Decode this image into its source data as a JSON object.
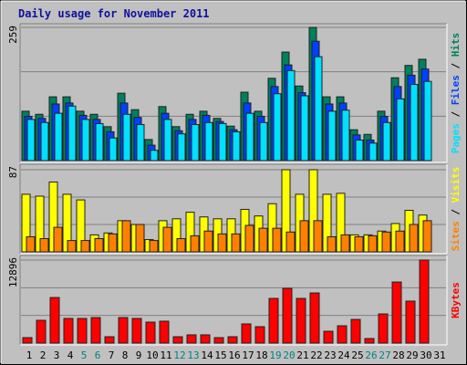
{
  "title": "Daily usage for November 2011",
  "chart_data": [
    {
      "type": "bar",
      "ylim": [
        0,
        259
      ],
      "yticks": [
        259
      ],
      "grid": true,
      "legend_separator": " / ",
      "series": [
        {
          "name": "Hits",
          "color": "#00805c",
          "values": [
            96,
            90,
            124,
            124,
            96,
            90,
            66,
            131,
            99,
            41,
            105,
            66,
            90,
            96,
            82,
            67,
            133,
            96,
            160,
            211,
            145,
            259,
            124,
            124,
            60,
            51,
            96,
            161,
            185,
            197,
            0
          ]
        },
        {
          "name": "Files",
          "color": "#0040ff",
          "values": [
            86,
            82,
            110,
            112,
            88,
            80,
            56,
            112,
            84,
            30,
            92,
            58,
            80,
            88,
            76,
            60,
            112,
            86,
            144,
            186,
            132,
            232,
            110,
            112,
            50,
            40,
            86,
            144,
            166,
            178,
            0
          ]
        },
        {
          "name": "Pages",
          "color": "#00e0ff",
          "values": [
            80,
            74,
            92,
            106,
            80,
            72,
            44,
            90,
            70,
            20,
            80,
            52,
            70,
            74,
            72,
            56,
            92,
            74,
            130,
            175,
            126,
            202,
            96,
            98,
            40,
            34,
            74,
            120,
            148,
            154,
            0
          ]
        }
      ]
    },
    {
      "type": "bar",
      "ylim": [
        0,
        87
      ],
      "yticks": [
        87
      ],
      "grid": true,
      "legend_separator": " / ",
      "series": [
        {
          "name": "Visits",
          "color": "#ffff00",
          "values": [
            61,
            59,
            74,
            61,
            55,
            18,
            20,
            33,
            29,
            13,
            33,
            35,
            42,
            37,
            35,
            35,
            45,
            38,
            51,
            87,
            61,
            87,
            61,
            62,
            18,
            18,
            22,
            30,
            44,
            39,
            0
          ]
        },
        {
          "name": "Sites",
          "color": "#ff8000",
          "values": [
            16,
            14,
            26,
            12,
            12,
            14,
            19,
            33,
            29,
            12,
            26,
            14,
            17,
            22,
            19,
            19,
            28,
            25,
            25,
            21,
            33,
            33,
            16,
            18,
            16,
            17,
            21,
            22,
            29,
            33,
            0
          ]
        }
      ]
    },
    {
      "type": "bar",
      "ylim": [
        0,
        12896
      ],
      "yticks": [
        12896
      ],
      "grid": true,
      "categories": [
        "1",
        "2",
        "3",
        "4",
        "5",
        "6",
        "7",
        "8",
        "9",
        "10",
        "11",
        "12",
        "13",
        "14",
        "15",
        "16",
        "17",
        "18",
        "19",
        "20",
        "21",
        "22",
        "23",
        "24",
        "25",
        "26",
        "27",
        "28",
        "29",
        "30",
        "31"
      ],
      "weekend": [
        false,
        false,
        false,
        false,
        true,
        true,
        false,
        false,
        false,
        false,
        false,
        true,
        true,
        false,
        false,
        false,
        false,
        false,
        true,
        true,
        false,
        false,
        false,
        false,
        false,
        true,
        true,
        false,
        false,
        false,
        false
      ],
      "label_colors": {
        "weekday": "#000000",
        "weekend": "#008080"
      },
      "series": [
        {
          "name": "KBytes",
          "color": "#ff0000",
          "values": [
            850,
            3540,
            7080,
            3830,
            3830,
            3970,
            990,
            3970,
            3830,
            3260,
            3400,
            990,
            1280,
            1280,
            850,
            990,
            2980,
            2550,
            6940,
            8500,
            6940,
            7790,
            1840,
            2690,
            3680,
            710,
            4530,
            9490,
            6520,
            12896,
            0
          ]
        }
      ]
    }
  ]
}
